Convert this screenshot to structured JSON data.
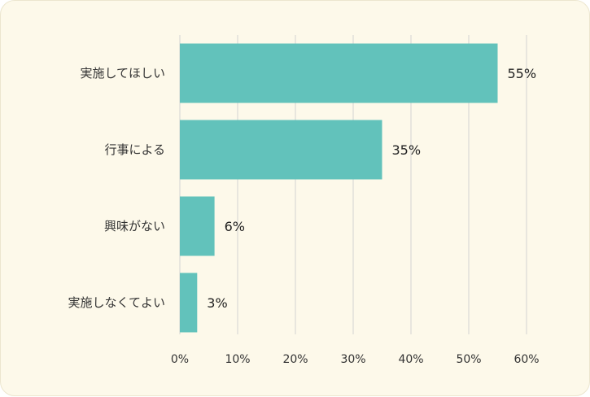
{
  "chart_data": {
    "type": "bar",
    "orientation": "horizontal",
    "categories": [
      "実施してほしい",
      "行事による",
      "興味がない",
      "実施しなくてよい"
    ],
    "values": [
      55,
      35,
      6,
      3
    ],
    "value_labels": [
      "55%",
      "35%",
      "6%",
      "3%"
    ],
    "xlim": [
      0,
      60
    ],
    "xticks": [
      0,
      10,
      20,
      30,
      40,
      50,
      60
    ],
    "xtick_labels": [
      "0%",
      "10%",
      "20%",
      "30%",
      "40%",
      "50%",
      "60%"
    ],
    "grid": true,
    "bar_color": "#62c2bb",
    "background_color": "#fdf9ea"
  }
}
